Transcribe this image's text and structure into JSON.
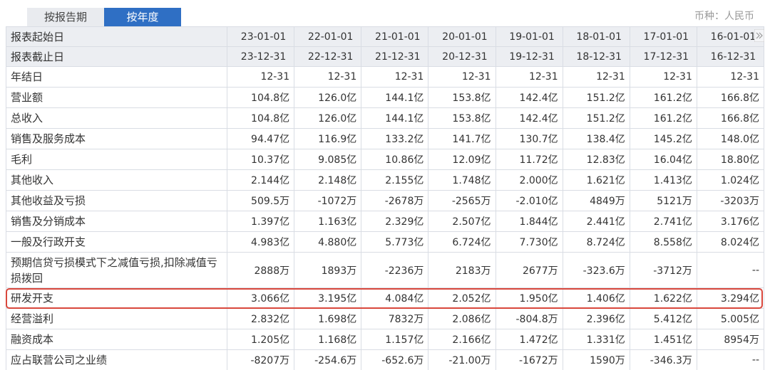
{
  "tabs": [
    "按报告期",
    "按年度"
  ],
  "currency": "币种：人民币",
  "table": {
    "header_rows": [
      [
        "报表起始日",
        "23-01-01",
        "22-01-01",
        "21-01-01",
        "20-01-01",
        "19-01-01",
        "18-01-01",
        "17-01-01",
        "16-01-01"
      ],
      [
        "报表截止日",
        "23-12-31",
        "22-12-31",
        "21-12-31",
        "20-12-31",
        "19-12-31",
        "18-12-31",
        "17-12-31",
        "16-12-31"
      ]
    ],
    "rows": [
      [
        "年结日",
        "12-31",
        "12-31",
        "12-31",
        "12-31",
        "12-31",
        "12-31",
        "12-31",
        "12-31"
      ],
      [
        "营业额",
        "104.8亿",
        "126.0亿",
        "144.1亿",
        "153.8亿",
        "142.4亿",
        "151.2亿",
        "161.2亿",
        "166.8亿"
      ],
      [
        "总收入",
        "104.8亿",
        "126.0亿",
        "144.1亿",
        "153.8亿",
        "142.4亿",
        "151.2亿",
        "161.2亿",
        "166.8亿"
      ],
      [
        "销售及服务成本",
        "94.47亿",
        "116.9亿",
        "133.2亿",
        "141.7亿",
        "130.7亿",
        "138.4亿",
        "145.2亿",
        "148.0亿"
      ],
      [
        "毛利",
        "10.37亿",
        "9.085亿",
        "10.86亿",
        "12.09亿",
        "11.72亿",
        "12.83亿",
        "16.04亿",
        "18.80亿"
      ],
      [
        "其他收入",
        "2.144亿",
        "2.148亿",
        "2.155亿",
        "1.748亿",
        "2.000亿",
        "1.621亿",
        "1.413亿",
        "1.024亿"
      ],
      [
        "其他收益及亏损",
        "509.5万",
        "-1072万",
        "-2678万",
        "-2565万",
        "-2.010亿",
        "4849万",
        "5121万",
        "-3203万"
      ],
      [
        "销售及分销成本",
        "1.397亿",
        "1.163亿",
        "2.329亿",
        "2.507亿",
        "1.844亿",
        "2.441亿",
        "2.741亿",
        "3.176亿"
      ],
      [
        "一般及行政开支",
        "4.983亿",
        "4.880亿",
        "5.773亿",
        "6.724亿",
        "7.730亿",
        "8.724亿",
        "8.558亿",
        "8.024亿"
      ],
      [
        "预期信贷亏损模式下之减值亏损,扣除减值亏损拨回",
        "2888万",
        "1893万",
        "-2236万",
        "2183万",
        "2677万",
        "-323.6万",
        "-3712万",
        "--"
      ],
      [
        "研发开支",
        "3.066亿",
        "3.195亿",
        "4.084亿",
        "2.052亿",
        "1.950亿",
        "1.406亿",
        "1.622亿",
        "3.294亿"
      ],
      [
        "经营溢利",
        "2.832亿",
        "1.698亿",
        "7832万",
        "2.086亿",
        "-804.8万",
        "2.396亿",
        "5.412亿",
        "5.005亿"
      ],
      [
        "融资成本",
        "1.205亿",
        "1.168亿",
        "1.157亿",
        "2.166亿",
        "1.472亿",
        "1.331亿",
        "1.451亿",
        "8954万"
      ],
      [
        "应占联营公司之业绩",
        "-8207万",
        "-254.6万",
        "-652.6万",
        "-21.00万",
        "-1672万",
        "1590万",
        "-346.3万",
        "--"
      ]
    ]
  }
}
